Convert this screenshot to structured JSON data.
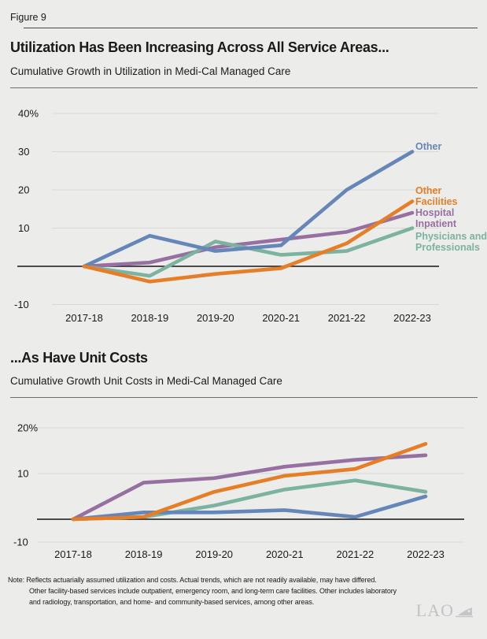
{
  "figure_label": "Figure 9",
  "chart_data": [
    {
      "type": "line",
      "title": "Utilization Has Been Increasing Across All Service Areas...",
      "subtitle": "Cumulative Growth in Utilization in Medi-Cal Managed Care",
      "categories": [
        "2017-18",
        "2018-19",
        "2019-20",
        "2020-21",
        "2021-22",
        "2022-23"
      ],
      "y_ticks": [
        {
          "value": 40,
          "label": "40%"
        },
        {
          "value": 30,
          "label": "30"
        },
        {
          "value": 20,
          "label": "20"
        },
        {
          "value": 10,
          "label": "10"
        },
        {
          "value": -10,
          "label": "-10"
        }
      ],
      "ylim": [
        -10,
        44
      ],
      "grid": true,
      "baseline_value": 0,
      "legend_position": "end-of-line-labels-right",
      "series": [
        {
          "name": "Other",
          "label_lines": [
            "Other"
          ],
          "color": "#6586B8",
          "values": [
            0,
            8,
            4,
            5.5,
            20,
            30
          ]
        },
        {
          "name": "Other Facilities",
          "label_lines": [
            "Other",
            "Facilities"
          ],
          "color": "#E57E27",
          "values": [
            0,
            -4,
            -2,
            -0.5,
            6,
            17
          ]
        },
        {
          "name": "Hospital Inpatient",
          "label_lines": [
            "Hospital",
            "Inpatient"
          ],
          "color": "#9670A0",
          "values": [
            0,
            1,
            5,
            7,
            9,
            14
          ]
        },
        {
          "name": "Physicians and Professionals",
          "label_lines": [
            "Physicians and",
            "Professionals"
          ],
          "color": "#7BB2A0",
          "values": [
            0,
            -2.5,
            6.5,
            3,
            4,
            10
          ]
        }
      ]
    },
    {
      "type": "line",
      "title": "...As Have Unit Costs",
      "subtitle": "Cumulative Growth Unit Costs in Medi-Cal Managed Care",
      "categories": [
        "2017-18",
        "2018-19",
        "2019-20",
        "2020-21",
        "2021-22",
        "2022-23"
      ],
      "y_ticks": [
        {
          "value": 20,
          "label": "20%"
        },
        {
          "value": 10,
          "label": "10"
        },
        {
          "value": -10,
          "label": "-10"
        }
      ],
      "ylim": [
        -5,
        22
      ],
      "grid": true,
      "baseline_value": 0,
      "legend_position": "none",
      "series": [
        {
          "name": "Other",
          "color": "#6586B8",
          "values": [
            0,
            1.5,
            1.5,
            2,
            0.5,
            5
          ]
        },
        {
          "name": "Other Facilities",
          "color": "#E57E27",
          "values": [
            0,
            0.5,
            6,
            9.5,
            11,
            16.5
          ]
        },
        {
          "name": "Hospital Inpatient",
          "color": "#9670A0",
          "values": [
            0,
            8,
            9,
            11.5,
            13,
            14
          ]
        },
        {
          "name": "Physicians and Professionals",
          "color": "#7BB2A0",
          "values": [
            0,
            0.5,
            3,
            6.5,
            8.5,
            6
          ]
        }
      ]
    }
  ],
  "note": {
    "lines": [
      "Note: Reflects actuarially assumed utilization and costs. Actual trends, which are not readily available, may have differed.",
      "Other facility-based services include outpatient, emergency room, and long-term care facilities. Other includes laboratory",
      "and radiology, transportation, and home- and community-based services, among other areas."
    ]
  },
  "logo": {
    "text": "LAO"
  },
  "colors": {
    "background": "#ECECEA",
    "gridline": "#D8D8D6",
    "zero_line": "#151515",
    "text": "#1A1A1A",
    "series_other": "#6586B8",
    "series_other_facilities": "#E57E27",
    "series_hospital_inpatient": "#9670A0",
    "series_physicians_professionals": "#7BB2A0",
    "logo_gray": "#C2C2C5"
  }
}
